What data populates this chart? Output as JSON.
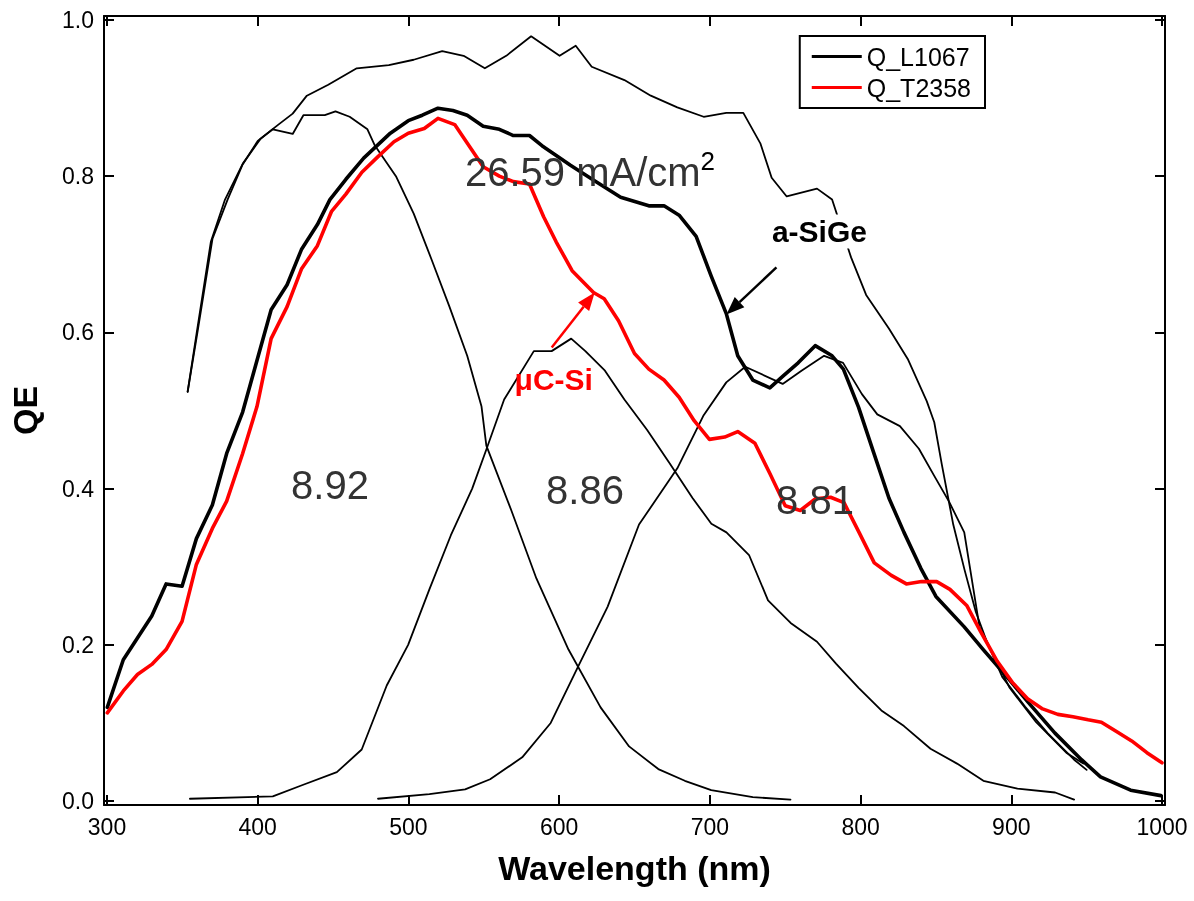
{
  "chart_data": {
    "type": "line",
    "xlabel": "Wavelength (nm)",
    "ylabel": "QE",
    "xlim": [
      298,
      1002
    ],
    "ylim": [
      -0.005,
      1.005
    ],
    "xticks": [
      300,
      400,
      500,
      600,
      700,
      800,
      900,
      1000
    ],
    "yticks": [
      {
        "value": 0,
        "label": "0.0"
      },
      0.2,
      0.4,
      0.6,
      0.8,
      {
        "value": 1,
        "label": "1.0"
      }
    ],
    "legend": "top right",
    "marker": "none",
    "line_style": "solid",
    "series": [
      {
        "color": "#000000",
        "x": [
          353.5,
          359.4,
          368.9,
          378.3,
          390.1,
          401.9,
          413.7,
          423.2,
          432.6,
          446.8,
          465.7,
          487,
          503.5,
          522.4,
          536.6,
          550.7,
          564.9,
          581.4,
          600.3,
          611,
          621.6,
          643.3,
          660.8,
          678.4,
          695.9,
          710.9,
          722.2,
          733.5,
          741,
          751,
          771.1,
          781.1,
          793.7,
          803.7,
          818.8,
          831.3,
          843.9,
          848.9,
          853.9,
          861.5,
          869,
          876.5,
          884,
          894,
          909.1,
          924.1,
          941.7,
          950
        ],
        "values": [
          0.524,
          0.598,
          0.716,
          0.77,
          0.816,
          0.848,
          0.866,
          0.88,
          0.903,
          0.917,
          0.938,
          0.942,
          0.949,
          0.96,
          0.954,
          0.938,
          0.954,
          0.979,
          0.954,
          0.967,
          0.94,
          0.923,
          0.903,
          0.888,
          0.876,
          0.881,
          0.881,
          0.842,
          0.798,
          0.774,
          0.784,
          0.77,
          0.696,
          0.648,
          0.605,
          0.566,
          0.512,
          0.485,
          0.431,
          0.354,
          0.296,
          0.242,
          0.203,
          0.159,
          0.121,
          0.087,
          0.053,
          0.04
        ]
      },
      {
        "color": "#000000",
        "x": [
          353.5,
          360,
          370,
          380,
          390,
          400,
          410,
          423.2,
          430.3,
          444.5,
          451.6,
          461,
          472.8,
          477.5,
          491.7,
          503.5,
          515.4,
          527.2,
          539,
          548.5,
          551.7,
          568.3,
          584.9,
          606.2,
          627.5,
          646.4,
          665.8,
          683.4,
          700.9,
          728.5,
          753.5
        ],
        "values": [
          0.524,
          0.6,
          0.72,
          0.77,
          0.815,
          0.845,
          0.86,
          0.854,
          0.878,
          0.878,
          0.883,
          0.876,
          0.86,
          0.84,
          0.8,
          0.752,
          0.693,
          0.633,
          0.57,
          0.505,
          0.455,
          0.372,
          0.285,
          0.194,
          0.12,
          0.07,
          0.041,
          0.026,
          0.014,
          0.005,
          0.002
        ]
      },
      {
        "color": "#000000",
        "x": [
          355,
          410,
          428.9,
          452.5,
          469,
          485.6,
          499.8,
          513.9,
          528.1,
          542.3,
          551.7,
          563.5,
          583.2,
          595,
          608,
          617.4,
          630.4,
          643.3,
          658.4,
          673.4,
          688.5,
          701,
          711,
          726,
          738.6,
          753.6,
          771.1,
          783.7,
          798.7,
          813.8,
          828.8,
          846.4,
          864,
          881.5,
          904.1,
          929.1,
          941.7
        ],
        "values": [
          0.003,
          0.006,
          0.02,
          0.037,
          0.066,
          0.148,
          0.2,
          0.271,
          0.34,
          0.4,
          0.45,
          0.514,
          0.576,
          0.576,
          0.592,
          0.576,
          0.551,
          0.514,
          0.475,
          0.432,
          0.388,
          0.355,
          0.344,
          0.315,
          0.257,
          0.228,
          0.204,
          0.176,
          0.145,
          0.116,
          0.096,
          0.067,
          0.048,
          0.026,
          0.016,
          0.011,
          0.002
        ]
      },
      {
        "color": "#000000",
        "x": [
          479.8,
          513.9,
          537.6,
          554.2,
          575.5,
          594.4,
          613.3,
          632.2,
          653,
          678.4,
          695.9,
          710.9,
          723.5,
          748.3,
          760.8,
          775.8,
          788.4,
          800.9,
          811.1,
          826.1,
          838.7,
          848.7,
          858.8,
          868.8,
          878.9,
          898.9,
          916.5,
          936.5,
          947.8
        ],
        "values": [
          0.003,
          0.009,
          0.015,
          0.028,
          0.056,
          0.1,
          0.175,
          0.249,
          0.354,
          0.426,
          0.494,
          0.536,
          0.556,
          0.534,
          0.551,
          0.57,
          0.561,
          0.521,
          0.495,
          0.48,
          0.451,
          0.417,
          0.383,
          0.344,
          0.223,
          0.145,
          0.101,
          0.062,
          0.048
        ]
      },
      {
        "name": "Q_L1067",
        "color": "#000000",
        "x": [
          300.2,
          310.8,
          329.7,
          339.2,
          349.8,
          359.3,
          369.9,
          379.4,
          390,
          399.5,
          408.9,
          419.5,
          429,
          439.6,
          447.9,
          458.5,
          470.3,
          488,
          499.9,
          509.2,
          519.6,
          529.5,
          539,
          549.6,
          560.3,
          569.6,
          580.3,
          588.6,
          607.5,
          621.9,
          640.8,
          659.5,
          669.6,
          679.6,
          690.9,
          700.9,
          710.9,
          718.5,
          728.5,
          739.8,
          748.5,
          758.6,
          769.9,
          781.1,
          788.6,
          798.7,
          808.7,
          818.8,
          828.8,
          840,
          850,
          868.8,
          881.4,
          898.9,
          911.4,
          929,
          946.6,
          959.2,
          979.2,
          999.3
        ],
        "values": [
          0.12,
          0.181,
          0.237,
          0.278,
          0.275,
          0.336,
          0.379,
          0.445,
          0.498,
          0.564,
          0.629,
          0.661,
          0.706,
          0.738,
          0.77,
          0.796,
          0.823,
          0.855,
          0.871,
          0.878,
          0.887,
          0.884,
          0.878,
          0.864,
          0.86,
          0.852,
          0.852,
          0.839,
          0.814,
          0.796,
          0.773,
          0.762,
          0.762,
          0.75,
          0.723,
          0.672,
          0.624,
          0.57,
          0.539,
          0.529,
          0.544,
          0.561,
          0.583,
          0.57,
          0.553,
          0.504,
          0.446,
          0.388,
          0.344,
          0.298,
          0.262,
          0.223,
          0.194,
          0.155,
          0.126,
          0.087,
          0.053,
          0.031,
          0.014,
          0.007
        ]
      },
      {
        "name": "Q_T2358",
        "color": "#ff0000",
        "x": [
          300.2,
          310.8,
          320.2,
          329.7,
          339.2,
          349.8,
          359.3,
          369.9,
          379.4,
          390,
          399.5,
          408.9,
          419.5,
          429,
          439.6,
          449,
          458.5,
          469.1,
          479.8,
          490.4,
          499.9,
          510.5,
          519.6,
          530.7,
          540.2,
          549.6,
          560.3,
          569.6,
          580.3,
          589.7,
          598,
          608.6,
          622.8,
          629.9,
          639.4,
          650,
          659.5,
          669.6,
          679.6,
          689.6,
          699.7,
          709.8,
          718.5,
          729.9,
          739.9,
          750,
          760,
          770.1,
          780.1,
          789,
          799,
          809.1,
          820.4,
          830.4,
          840.5,
          850.5,
          859.3,
          870.6,
          879.4,
          890.7,
          900.7,
          910.8,
          920.8,
          930.9,
          940.9,
          951,
          959.8,
          969.8,
          979.9,
          990,
          1000
        ],
        "values": [
          0.113,
          0.141,
          0.162,
          0.175,
          0.194,
          0.23,
          0.303,
          0.349,
          0.384,
          0.445,
          0.505,
          0.592,
          0.633,
          0.681,
          0.711,
          0.755,
          0.777,
          0.805,
          0.825,
          0.844,
          0.855,
          0.861,
          0.874,
          0.866,
          0.839,
          0.812,
          0.8,
          0.793,
          0.79,
          0.748,
          0.716,
          0.679,
          0.651,
          0.643,
          0.615,
          0.573,
          0.553,
          0.539,
          0.517,
          0.487,
          0.463,
          0.466,
          0.473,
          0.458,
          0.419,
          0.378,
          0.372,
          0.387,
          0.389,
          0.382,
          0.344,
          0.305,
          0.289,
          0.278,
          0.281,
          0.281,
          0.271,
          0.25,
          0.218,
          0.179,
          0.152,
          0.131,
          0.118,
          0.111,
          0.108,
          0.104,
          0.101,
          0.089,
          0.077,
          0.062,
          0.049
        ]
      }
    ],
    "annotations": [
      "26.59 mA/cm$^{2}$",
      "8.92",
      "8.86",
      "8.81",
      {
        "text": "a-SiGe",
        "x": 711,
        "y": 0.623
      },
      {
        "text": "μC-Si",
        "x": 623.6,
        "y": 0.651
      }
    ]
  }
}
